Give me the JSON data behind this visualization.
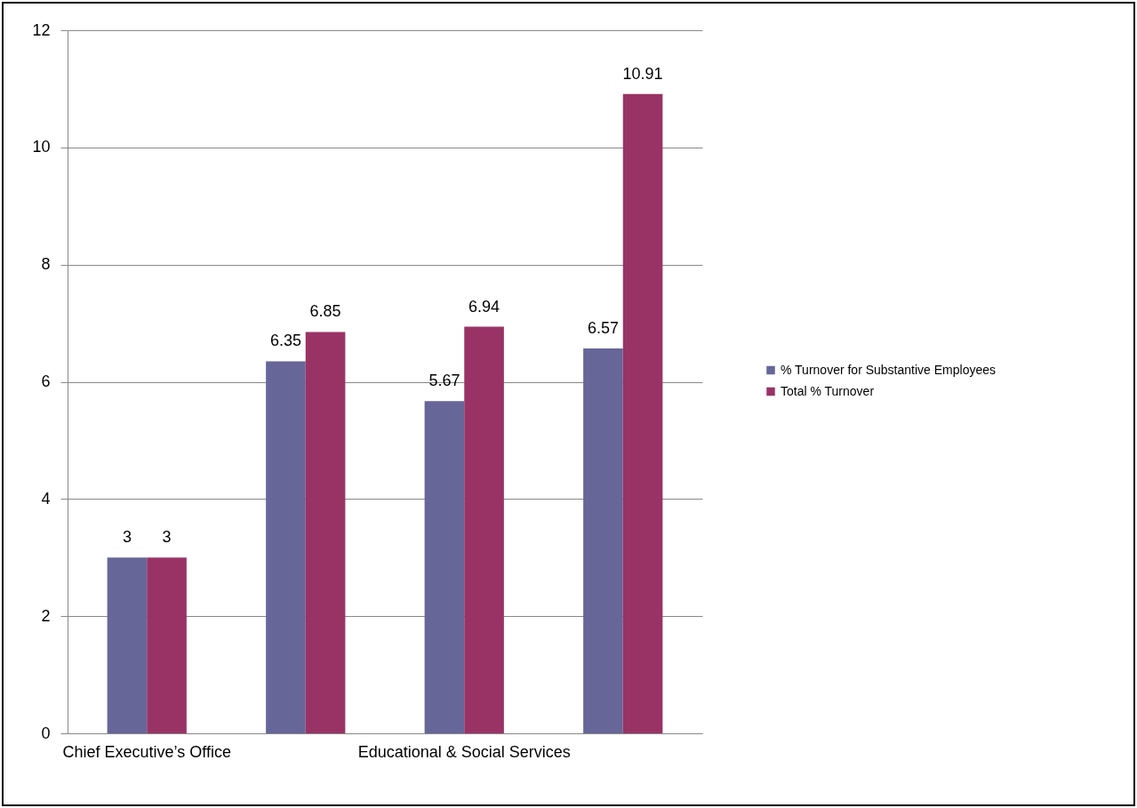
{
  "chart_data": {
    "type": "bar",
    "categories": [
      "Chief Executive’s Office",
      null,
      "Educational & Social Services",
      null
    ],
    "series": [
      {
        "name": "% Turnover for Substantive Employees",
        "color": "#666699",
        "values": [
          3,
          6.35,
          5.67,
          6.57
        ]
      },
      {
        "name": "Total % Turnover",
        "color": "#993366",
        "values": [
          3,
          6.85,
          6.94,
          10.91
        ]
      }
    ],
    "ylim": [
      0,
      12
    ],
    "yticks": [
      0,
      2,
      4,
      6,
      8,
      10,
      12
    ],
    "grid": "y",
    "legend": "right",
    "data_labels": true
  }
}
